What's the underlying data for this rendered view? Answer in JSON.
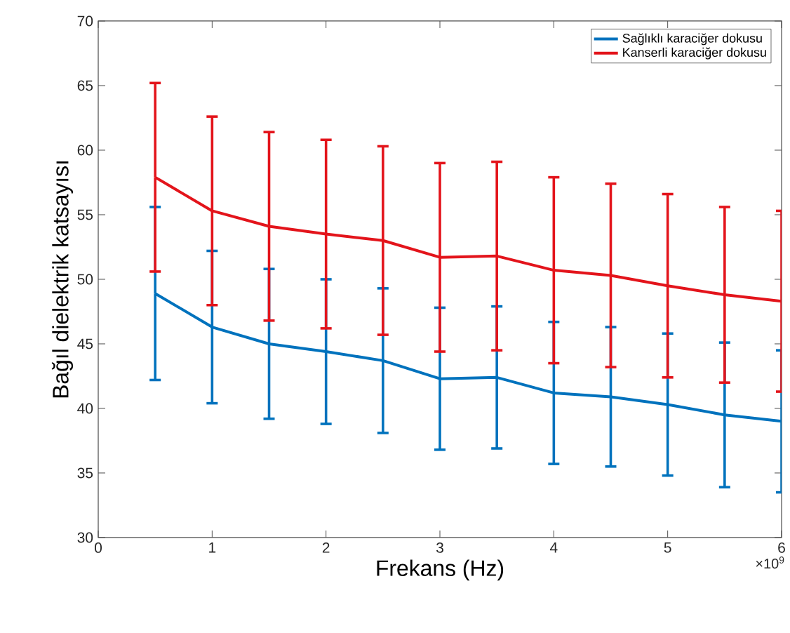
{
  "chart_data": {
    "type": "line",
    "xlabel": "Frekans (Hz)",
    "ylabel": "Bağıl dielektrik katsayısı",
    "x": [
      0.5,
      1,
      1.5,
      2,
      2.5,
      3,
      3.5,
      4,
      4.5,
      5,
      5.5,
      6
    ],
    "series": [
      {
        "name": "Sağlıklı karaciğer dokusu",
        "color": "#0072bd",
        "values": [
          48.9,
          46.3,
          45.0,
          44.4,
          43.7,
          42.3,
          42.4,
          41.2,
          40.9,
          40.3,
          39.5,
          39.0
        ],
        "errors": [
          6.7,
          5.9,
          5.8,
          5.6,
          5.6,
          5.5,
          5.5,
          5.5,
          5.4,
          5.5,
          5.6,
          5.5
        ]
      },
      {
        "name": "Kanserli karaciğer dokusu",
        "color": "#e3141b",
        "values": [
          57.9,
          55.3,
          54.1,
          53.5,
          53.0,
          51.7,
          51.8,
          50.7,
          50.3,
          49.5,
          48.8,
          48.3
        ],
        "errors": [
          7.3,
          7.3,
          7.3,
          7.3,
          7.3,
          7.3,
          7.3,
          7.2,
          7.1,
          7.1,
          6.8,
          7.0
        ]
      }
    ],
    "xlim": [
      0,
      6
    ],
    "xticks": [
      0,
      1,
      2,
      3,
      4,
      5,
      6
    ],
    "ylim": [
      30,
      70
    ],
    "yticks": [
      30,
      35,
      40,
      45,
      50,
      55,
      60,
      65,
      70
    ],
    "annotations": [
      "×10$^{9}$"
    ],
    "legend": "top right",
    "grid": false,
    "marker": "none",
    "line_style": "solid"
  }
}
